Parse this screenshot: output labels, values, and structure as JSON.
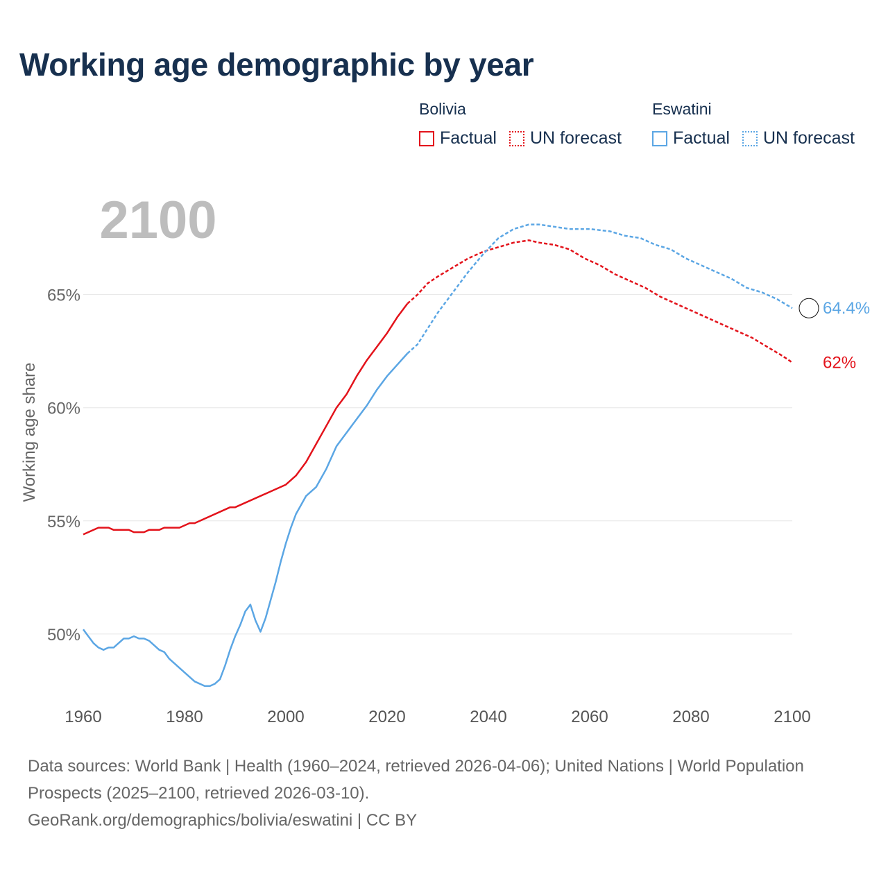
{
  "chart_data": {
    "type": "line",
    "title": "Working age demographic by year",
    "ylabel": "Working age share",
    "xlabel": "",
    "year_label": "2100",
    "xlim": [
      1960,
      2100
    ],
    "ylim": [
      46.5,
      71
    ],
    "x_ticks": [
      "1960",
      "1980",
      "2000",
      "2020",
      "2040",
      "2060",
      "2080",
      "2100"
    ],
    "x_tick_values": [
      1960,
      1980,
      2000,
      2020,
      2040,
      2060,
      2080,
      2100
    ],
    "y_ticks": [
      "50%",
      "55%",
      "60%",
      "65%"
    ],
    "y_tick_values": [
      50,
      55,
      60,
      65
    ],
    "factual_end_year": 2024,
    "series": [
      {
        "name": "Bolivia",
        "color": "#e3131b",
        "end_label": "62%",
        "flag": "bolivia-flag",
        "factual_label": "Factual",
        "forecast_label": "UN forecast",
        "points": [
          [
            1960,
            54.4
          ],
          [
            1961,
            54.5
          ],
          [
            1963,
            54.7
          ],
          [
            1965,
            54.7
          ],
          [
            1966,
            54.6
          ],
          [
            1969,
            54.6
          ],
          [
            1970,
            54.5
          ],
          [
            1972,
            54.5
          ],
          [
            1973,
            54.6
          ],
          [
            1975,
            54.6
          ],
          [
            1976,
            54.7
          ],
          [
            1979,
            54.7
          ],
          [
            1981,
            54.9
          ],
          [
            1982,
            54.9
          ],
          [
            1989,
            55.6
          ],
          [
            1990,
            55.6
          ],
          [
            1999,
            56.5
          ],
          [
            2000,
            56.6
          ],
          [
            2002,
            57.0
          ],
          [
            2004,
            57.6
          ],
          [
            2006,
            58.4
          ],
          [
            2008,
            59.2
          ],
          [
            2010,
            60.0
          ],
          [
            2012,
            60.6
          ],
          [
            2014,
            61.4
          ],
          [
            2016,
            62.1
          ],
          [
            2018,
            62.7
          ],
          [
            2020,
            63.3
          ],
          [
            2022,
            64.0
          ],
          [
            2024,
            64.6
          ],
          [
            2026,
            65.0
          ],
          [
            2028,
            65.5
          ],
          [
            2030,
            65.8
          ],
          [
            2033,
            66.2
          ],
          [
            2036,
            66.6
          ],
          [
            2039,
            66.9
          ],
          [
            2042,
            67.1
          ],
          [
            2045,
            67.3
          ],
          [
            2048,
            67.4
          ],
          [
            2050,
            67.3
          ],
          [
            2053,
            67.2
          ],
          [
            2056,
            67.0
          ],
          [
            2059,
            66.6
          ],
          [
            2062,
            66.3
          ],
          [
            2065,
            65.9
          ],
          [
            2068,
            65.6
          ],
          [
            2071,
            65.3
          ],
          [
            2074,
            64.9
          ],
          [
            2077,
            64.6
          ],
          [
            2080,
            64.3
          ],
          [
            2083,
            64.0
          ],
          [
            2086,
            63.7
          ],
          [
            2089,
            63.4
          ],
          [
            2092,
            63.1
          ],
          [
            2095,
            62.7
          ],
          [
            2098,
            62.3
          ],
          [
            2100,
            62.0
          ]
        ]
      },
      {
        "name": "Eswatini",
        "color": "#5ba6e4",
        "end_label": "64.4%",
        "flag": "eswatini-flag",
        "factual_label": "Factual",
        "forecast_label": "UN forecast",
        "points": [
          [
            1960,
            50.2
          ],
          [
            1961,
            49.9
          ],
          [
            1962,
            49.6
          ],
          [
            1963,
            49.4
          ],
          [
            1964,
            49.3
          ],
          [
            1965,
            49.4
          ],
          [
            1966,
            49.4
          ],
          [
            1968,
            49.8
          ],
          [
            1969,
            49.8
          ],
          [
            1970,
            49.9
          ],
          [
            1971,
            49.8
          ],
          [
            1972,
            49.8
          ],
          [
            1973,
            49.7
          ],
          [
            1975,
            49.3
          ],
          [
            1976,
            49.2
          ],
          [
            1977,
            48.9
          ],
          [
            1980,
            48.3
          ],
          [
            1982,
            47.9
          ],
          [
            1984,
            47.7
          ],
          [
            1985,
            47.7
          ],
          [
            1986,
            47.8
          ],
          [
            1987,
            48.0
          ],
          [
            1988,
            48.6
          ],
          [
            1989,
            49.3
          ],
          [
            1990,
            49.9
          ],
          [
            1991,
            50.4
          ],
          [
            1992,
            51.0
          ],
          [
            1993,
            51.3
          ],
          [
            1994,
            50.6
          ],
          [
            1995,
            50.1
          ],
          [
            1996,
            50.7
          ],
          [
            1997,
            51.5
          ],
          [
            1998,
            52.3
          ],
          [
            1999,
            53.2
          ],
          [
            2000,
            54.0
          ],
          [
            2001,
            54.7
          ],
          [
            2002,
            55.3
          ],
          [
            2003,
            55.7
          ],
          [
            2004,
            56.1
          ],
          [
            2006,
            56.5
          ],
          [
            2008,
            57.3
          ],
          [
            2010,
            58.3
          ],
          [
            2012,
            58.9
          ],
          [
            2014,
            59.5
          ],
          [
            2016,
            60.1
          ],
          [
            2018,
            60.8
          ],
          [
            2020,
            61.4
          ],
          [
            2022,
            61.9
          ],
          [
            2024,
            62.4
          ],
          [
            2026,
            62.8
          ],
          [
            2028,
            63.5
          ],
          [
            2030,
            64.2
          ],
          [
            2033,
            65.1
          ],
          [
            2036,
            66.0
          ],
          [
            2039,
            66.8
          ],
          [
            2042,
            67.5
          ],
          [
            2045,
            67.9
          ],
          [
            2048,
            68.1
          ],
          [
            2050,
            68.1
          ],
          [
            2053,
            68.0
          ],
          [
            2056,
            67.9
          ],
          [
            2060,
            67.9
          ],
          [
            2064,
            67.8
          ],
          [
            2067,
            67.6
          ],
          [
            2070,
            67.5
          ],
          [
            2073,
            67.2
          ],
          [
            2076,
            67.0
          ],
          [
            2079,
            66.6
          ],
          [
            2082,
            66.3
          ],
          [
            2085,
            66.0
          ],
          [
            2088,
            65.7
          ],
          [
            2091,
            65.3
          ],
          [
            2094,
            65.1
          ],
          [
            2097,
            64.8
          ],
          [
            2100,
            64.4
          ]
        ]
      }
    ]
  },
  "legend": {
    "bolivia": {
      "country": "Bolivia",
      "factual": "Factual",
      "forecast": "UN forecast",
      "color": "#e3131b"
    },
    "eswatini": {
      "country": "Eswatini",
      "factual": "Factual",
      "forecast": "UN forecast",
      "color": "#5ba6e4"
    }
  },
  "footer": {
    "line1": "Data sources: World Bank | Health (1960–2024, retrieved 2026-04-06); United Nations | World Population Prospects (2025–2100, retrieved 2026-03-10).",
    "line2": "GeoRank.org/demographics/bolivia/eswatini | CC BY"
  }
}
